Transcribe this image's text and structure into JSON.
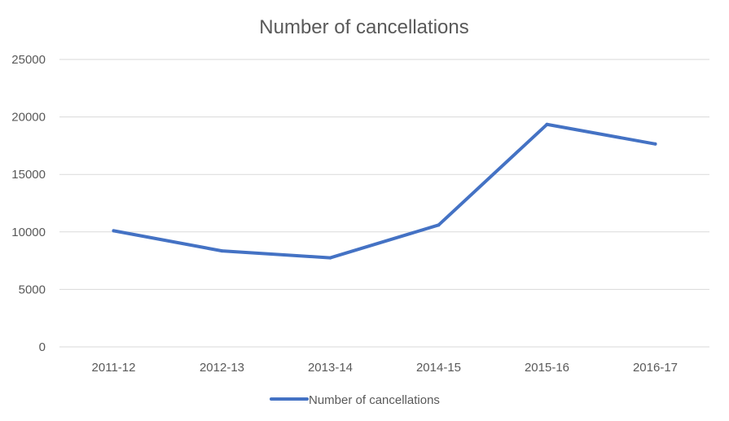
{
  "chart_data": {
    "type": "line",
    "title": "Number of cancellations",
    "xlabel": "",
    "ylabel": "",
    "categories": [
      "2011-12",
      "2012-13",
      "2013-14",
      "2014-15",
      "2015-16",
      "2016-17"
    ],
    "series": [
      {
        "name": "Number of cancellations",
        "color": "#4472c4",
        "values": [
          10100,
          8350,
          7750,
          10600,
          19350,
          17650
        ]
      }
    ],
    "ylim": [
      0,
      25000
    ],
    "yticks": [
      0,
      5000,
      10000,
      15000,
      20000,
      25000
    ],
    "yticklabels": [
      "0",
      "5000",
      "10000",
      "15000",
      "20000",
      "25000"
    ],
    "grid": true,
    "legend": "bottom"
  }
}
